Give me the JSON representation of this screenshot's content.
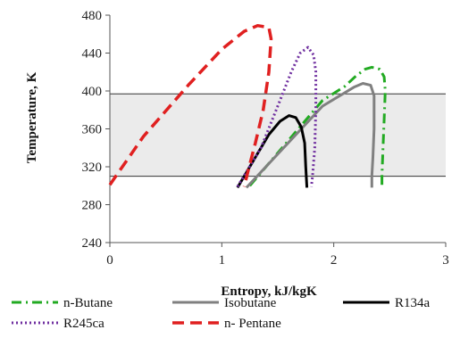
{
  "chart_data": {
    "type": "line",
    "title": "",
    "xlabel": "Entropy,  kJ/kgK",
    "ylabel": "Temperature,  K",
    "xlim": [
      0,
      3
    ],
    "ylim": [
      240,
      480
    ],
    "x_ticks": [
      "0",
      "1",
      "2",
      "3"
    ],
    "y_ticks": [
      "240",
      "280",
      "320",
      "360",
      "400",
      "440",
      "480"
    ],
    "y_tick_values": [
      240,
      280,
      320,
      360,
      400,
      440,
      480
    ],
    "x_tick_values": [
      0,
      1,
      2,
      3
    ],
    "grid": false,
    "reference_lines": [
      {
        "y": 397,
        "color": "#333333"
      },
      {
        "y": 310,
        "color": "#333333"
      }
    ],
    "shaded_band": {
      "y_from": 310,
      "y_to": 397,
      "color": "#ebebeb"
    },
    "legend_position": "bottom",
    "series": [
      {
        "name": "n-Butane",
        "color": "#22aa22",
        "style": "dashdot",
        "points": [
          [
            1.25,
            300
          ],
          [
            1.9,
            390
          ],
          [
            2.1,
            405
          ],
          [
            2.2,
            416
          ],
          [
            2.28,
            423
          ],
          [
            2.34,
            425
          ],
          [
            2.41,
            423
          ],
          [
            2.45,
            415
          ],
          [
            2.46,
            400
          ],
          [
            2.45,
            370
          ],
          [
            2.44,
            340
          ],
          [
            2.43,
            310
          ],
          [
            2.43,
            300
          ]
        ]
      },
      {
        "name": "Isobutane",
        "color": "#808080",
        "style": "solid",
        "points": [
          [
            1.22,
            298
          ],
          [
            1.9,
            384
          ],
          [
            2.18,
            404
          ],
          [
            2.26,
            408
          ],
          [
            2.33,
            406
          ],
          [
            2.36,
            395
          ],
          [
            2.36,
            360
          ],
          [
            2.35,
            330
          ],
          [
            2.34,
            310
          ],
          [
            2.34,
            298
          ]
        ]
      },
      {
        "name": "R134a",
        "color": "#000000",
        "style": "solid",
        "points": [
          [
            1.14,
            298
          ],
          [
            1.3,
            330
          ],
          [
            1.42,
            354
          ],
          [
            1.52,
            368
          ],
          [
            1.6,
            374
          ],
          [
            1.66,
            372
          ],
          [
            1.71,
            362
          ],
          [
            1.74,
            345
          ],
          [
            1.75,
            320
          ],
          [
            1.76,
            298
          ]
        ]
      },
      {
        "name": "R245ca",
        "color": "#7030a0",
        "style": "dotted",
        "points": [
          [
            1.14,
            299
          ],
          [
            1.35,
            340
          ],
          [
            1.52,
            390
          ],
          [
            1.62,
            420
          ],
          [
            1.7,
            440
          ],
          [
            1.77,
            446
          ],
          [
            1.82,
            438
          ],
          [
            1.84,
            420
          ],
          [
            1.84,
            380
          ],
          [
            1.83,
            340
          ],
          [
            1.81,
            310
          ],
          [
            1.8,
            299
          ]
        ]
      },
      {
        "name": "n- Pentane",
        "color": "#e02020",
        "style": "dashed",
        "points": [
          [
            0.0,
            301
          ],
          [
            0.3,
            352
          ],
          [
            0.7,
            406
          ],
          [
            1.0,
            444
          ],
          [
            1.2,
            463
          ],
          [
            1.32,
            469
          ],
          [
            1.42,
            467
          ],
          [
            1.44,
            455
          ],
          [
            1.42,
            420
          ],
          [
            1.37,
            380
          ],
          [
            1.3,
            345
          ],
          [
            1.24,
            318
          ],
          [
            1.2,
            299
          ]
        ]
      }
    ]
  }
}
